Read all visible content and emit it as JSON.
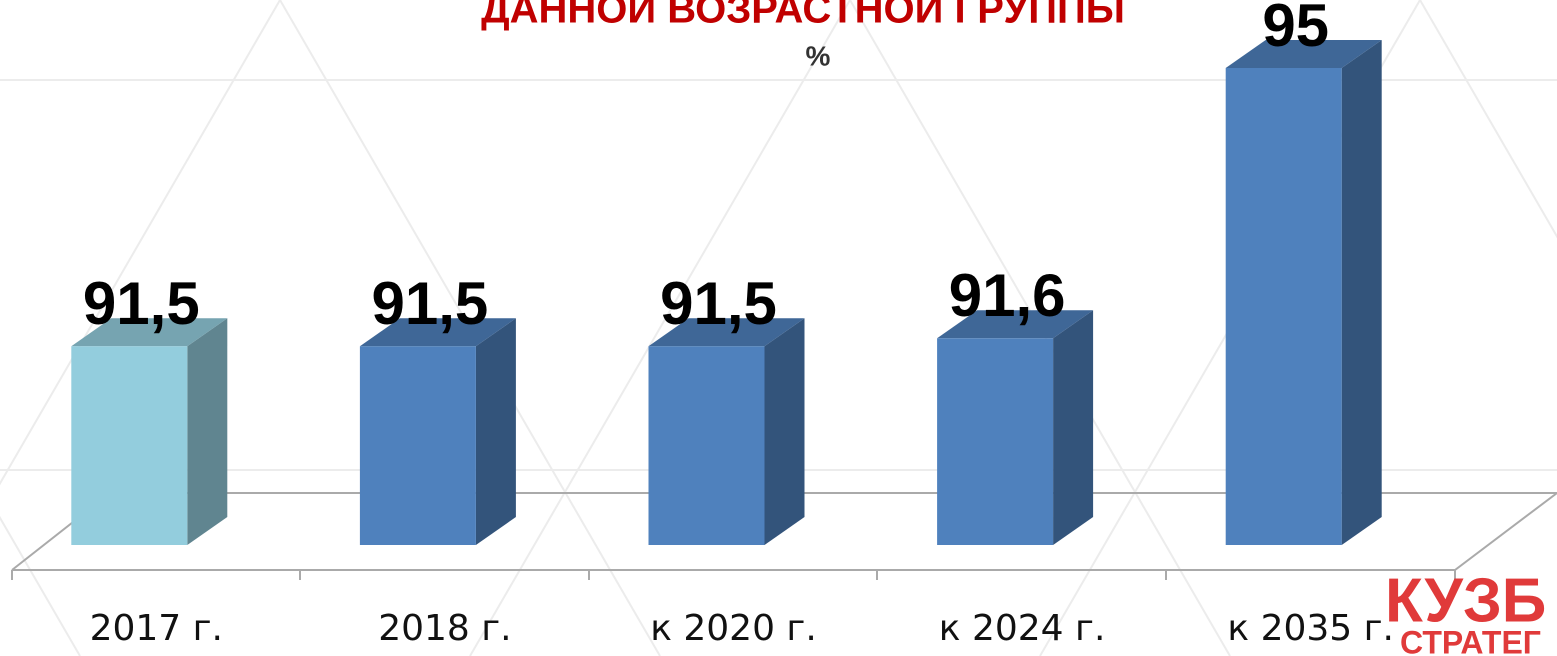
{
  "chart_data": {
    "type": "bar3d",
    "title": "ДАННОЙ ВОЗРАСТНОЙ ГРУППЫ",
    "subtitle": "%",
    "categories": [
      "2017 г.",
      "2018 г.",
      "к 2020 г.",
      "к 2024 г.",
      "к 2035 г."
    ],
    "values": [
      91.5,
      91.5,
      91.5,
      91.6,
      95
    ],
    "value_labels": [
      "91,5",
      "91,5",
      "91,5",
      "91,6",
      "95"
    ],
    "colors": [
      "#93cddd",
      "#4f81bd",
      "#4f81bd",
      "#4f81bd",
      "#4f81bd"
    ],
    "ylim": [
      89,
      95
    ]
  },
  "logo": {
    "line1": "КУЗБ",
    "line2": "СТРАТЕГ"
  }
}
